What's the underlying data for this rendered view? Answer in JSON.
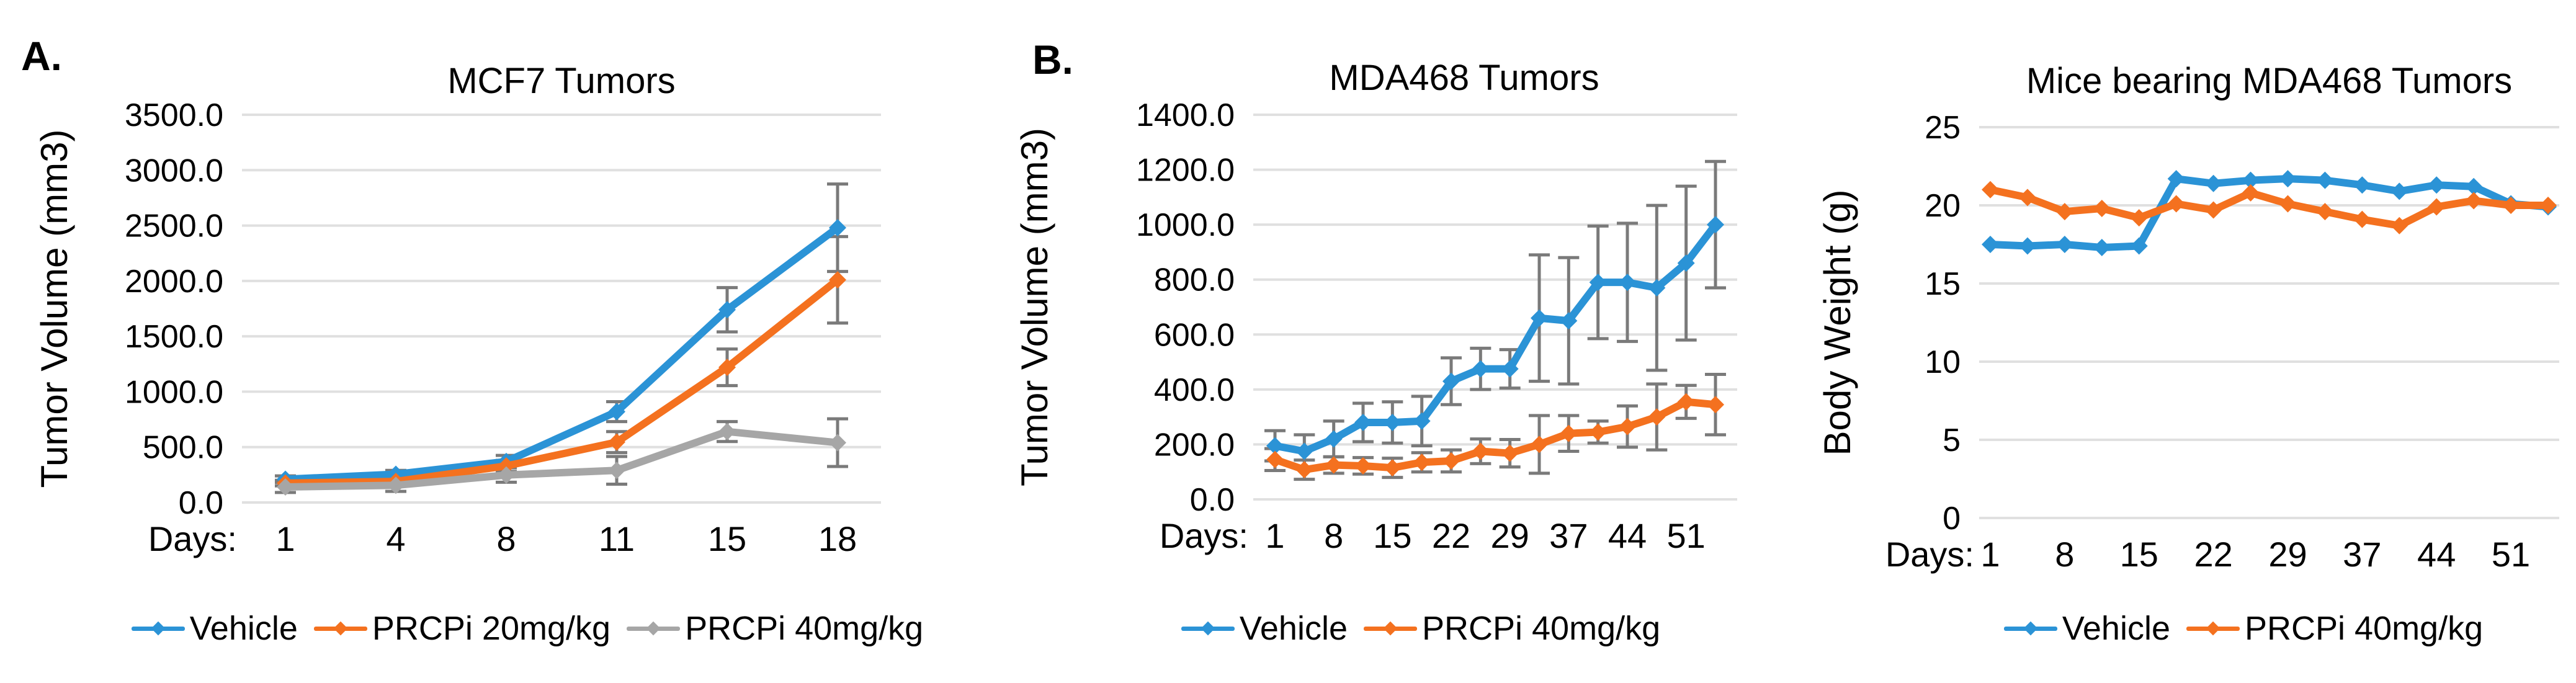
{
  "panels": {
    "a_label": "A.",
    "b_label": "B."
  },
  "colors": {
    "vehicle_blue": "#2B93D6",
    "prcpi_orange": "#F4711F",
    "prcpi_gray": "#A6A6A6",
    "error_bar": "#7A7A7A",
    "gridline": "#E0E0E0",
    "text": "#000000",
    "background": "#FFFFFF"
  },
  "chart_data": [
    {
      "id": "mcf7",
      "type": "line",
      "title": "MCF7 Tumors",
      "ylabel": "Tumor Volume (mm3)",
      "xlabel_prefix": "Days:",
      "ylim": [
        0,
        3500
      ],
      "ytick_step": 500,
      "ytick_decimals": 1,
      "grid": "horizontal",
      "legend_position": "bottom",
      "marker": "diamond",
      "categories": [
        "1",
        "4",
        "8",
        "11",
        "15",
        "18"
      ],
      "series": [
        {
          "name": "Vehicle",
          "color_key": "vehicle_blue",
          "values": [
            210,
            255,
            370,
            820,
            1740,
            2480
          ],
          "errors": [
            30,
            35,
            55,
            90,
            200,
            395
          ]
        },
        {
          "name": "PRCPi 20mg/kg",
          "color_key": "prcpi_orange",
          "values": [
            175,
            190,
            330,
            545,
            1220,
            2010
          ],
          "errors": [
            25,
            30,
            50,
            95,
            165,
            390
          ]
        },
        {
          "name": "PRCPi 40mg/kg",
          "color_key": "prcpi_gray",
          "values": [
            140,
            155,
            248,
            290,
            640,
            540
          ],
          "errors": [
            50,
            55,
            65,
            125,
            90,
            215
          ]
        }
      ]
    },
    {
      "id": "mda468",
      "type": "line",
      "title": "MDA468 Tumors",
      "ylabel": "Tumor Volume (mm3)",
      "xlabel_prefix": "Days:",
      "ylim": [
        0,
        1400
      ],
      "ytick_step": 200,
      "ytick_decimals": 1,
      "grid": "horizontal",
      "legend_position": "bottom",
      "marker": "diamond",
      "categories": [
        "1",
        "",
        "8",
        "",
        "15",
        "",
        "22",
        "",
        "29",
        "",
        "37",
        "",
        "44",
        "",
        "51",
        ""
      ],
      "series": [
        {
          "name": "Vehicle",
          "color_key": "vehicle_blue",
          "values": [
            195,
            175,
            220,
            280,
            280,
            285,
            430,
            475,
            475,
            660,
            650,
            790,
            790,
            770,
            860,
            1000
          ],
          "errors": [
            55,
            60,
            65,
            70,
            75,
            90,
            85,
            75,
            70,
            230,
            230,
            205,
            215,
            300,
            280,
            230
          ]
        },
        {
          "name": "PRCPi 40mg/kg",
          "color_key": "prcpi_orange",
          "values": [
            145,
            108,
            125,
            122,
            115,
            135,
            140,
            175,
            168,
            200,
            240,
            245,
            265,
            300,
            355,
            345
          ],
          "errors": [
            40,
            35,
            30,
            30,
            35,
            35,
            40,
            45,
            50,
            105,
            65,
            40,
            75,
            120,
            60,
            110
          ]
        }
      ]
    },
    {
      "id": "bodyweight",
      "type": "line",
      "title": "Mice bearing MDA468 Tumors",
      "ylabel": "Body Weight (g)",
      "xlabel_prefix": "Days:",
      "ylim": [
        0,
        25
      ],
      "ytick_step": 5,
      "ytick_decimals": 0,
      "grid": "horizontal",
      "legend_position": "bottom",
      "marker": "diamond",
      "categories": [
        "1",
        "",
        "8",
        "",
        "15",
        "",
        "22",
        "",
        "29",
        "",
        "37",
        "",
        "44",
        "",
        "51",
        ""
      ],
      "series": [
        {
          "name": "Vehicle",
          "color_key": "vehicle_blue",
          "values": [
            17.5,
            17.4,
            17.5,
            17.3,
            17.4,
            21.7,
            21.4,
            21.6,
            21.7,
            21.6,
            21.3,
            20.9,
            21.3,
            21.2,
            20.1,
            19.9
          ],
          "errors": []
        },
        {
          "name": "PRCPi 40mg/kg",
          "color_key": "prcpi_orange",
          "values": [
            21.0,
            20.5,
            19.6,
            19.8,
            19.2,
            20.1,
            19.7,
            20.8,
            20.1,
            19.6,
            19.1,
            18.7,
            19.9,
            20.3,
            20.0,
            20.0
          ],
          "errors": []
        }
      ]
    }
  ]
}
